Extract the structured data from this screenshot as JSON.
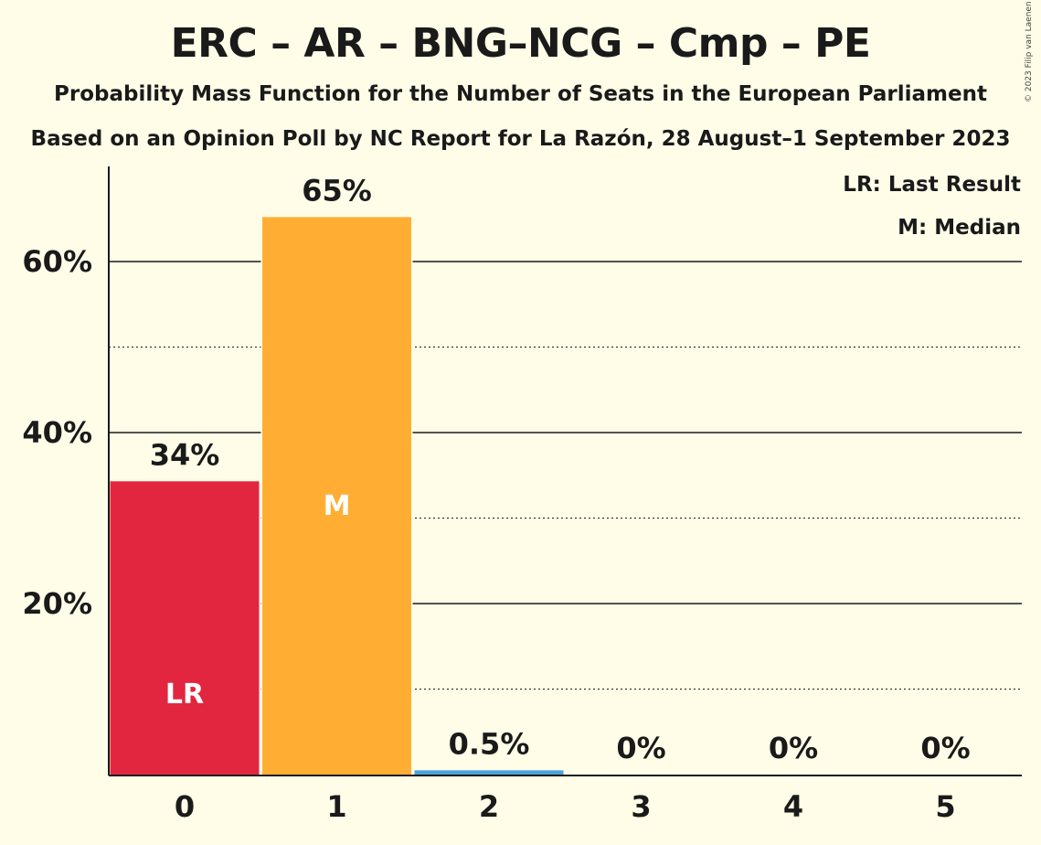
{
  "title": "ERC – AR – BNG–NCG – Cmp – PE",
  "subtitle": "Probability Mass Function for the Number of Seats in the European Parliament",
  "subtitle2": "Based on an Opinion Poll by NC Report for La Razón, 28 August–1 September 2023",
  "copyright": "© 2023 Filip van Laenen",
  "legend": {
    "last_result": "LR: Last Result",
    "median": "M: Median"
  },
  "colors": {
    "background": "#fffde8",
    "last_result_bar": "#e22640",
    "median_bar": "#ffae33",
    "other_bar": "#4aa3d8",
    "text": "#1a1a1a"
  },
  "chart_data": {
    "type": "bar",
    "categories": [
      "0",
      "1",
      "2",
      "3",
      "4",
      "5"
    ],
    "values": [
      34.3,
      65.2,
      0.5,
      0,
      0,
      0
    ],
    "labels": [
      "34%",
      "65%",
      "0.5%",
      "0%",
      "0%",
      "0%"
    ],
    "markers": [
      "LR",
      "M",
      "",
      "",
      "",
      ""
    ],
    "yticks": [
      20,
      40,
      60
    ],
    "ytick_labels": [
      "20%",
      "40%",
      "60%"
    ],
    "ylim": [
      0,
      70
    ],
    "grid_solid": [
      20,
      40,
      60
    ],
    "grid_dotted": [
      10,
      30,
      50
    ],
    "legend_placement": "top-right"
  }
}
